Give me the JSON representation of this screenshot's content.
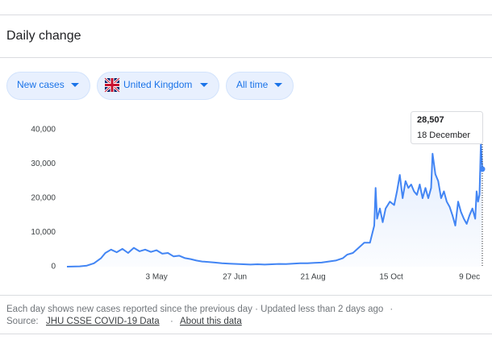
{
  "header": {
    "title": "Daily change"
  },
  "filters": [
    "New cases",
    "United Kingdom",
    "All time"
  ],
  "chart_data": {
    "type": "line",
    "color": "#4285f4",
    "grid": false,
    "x": [
      61,
      70,
      75,
      80,
      85,
      88,
      92,
      96,
      100,
      104,
      108,
      112,
      116,
      120,
      124,
      128,
      132,
      136,
      140,
      144,
      148,
      152,
      156,
      160,
      165,
      170,
      175,
      180,
      185,
      190,
      195,
      200,
      205,
      210,
      215,
      220,
      225,
      230,
      235,
      240,
      245,
      250,
      255,
      258,
      262,
      266,
      270,
      274,
      277,
      278,
      279,
      281,
      283,
      285,
      288,
      291,
      293,
      295,
      297,
      299,
      301,
      303,
      305,
      307,
      309,
      311,
      313,
      315,
      317,
      318,
      320,
      322,
      324,
      326,
      328,
      330,
      332,
      334,
      336,
      338,
      340,
      342,
      344,
      346,
      348,
      349,
      350,
      351,
      352,
      353
    ],
    "values": [
      0,
      100,
      300,
      1000,
      2500,
      4000,
      5000,
      4200,
      5200,
      4000,
      5500,
      4500,
      5000,
      4300,
      4800,
      3800,
      4000,
      3000,
      3200,
      2500,
      2200,
      1800,
      1500,
      1400,
      1200,
      1000,
      900,
      800,
      700,
      600,
      700,
      600,
      700,
      800,
      750,
      900,
      1000,
      1000,
      1100,
      1200,
      1500,
      1800,
      2500,
      3500,
      4000,
      5500,
      7000,
      7000,
      12000,
      23000,
      14000,
      17000,
      13000,
      17000,
      19000,
      18000,
      22000,
      26800,
      20000,
      25000,
      23000,
      24000,
      22000,
      21000,
      24000,
      20000,
      23000,
      20000,
      23000,
      33000,
      27000,
      25000,
      20000,
      22000,
      19000,
      17500,
      15000,
      12000,
      19000,
      16000,
      14000,
      12500,
      15000,
      17000,
      14000,
      22000,
      19000,
      21000,
      36000,
      28507
    ],
    "xlim": [
      61,
      353
    ],
    "xticks": [
      {
        "value": 124,
        "label": "3 May"
      },
      {
        "value": 179,
        "label": "27 Jun"
      },
      {
        "value": 234,
        "label": "21 Aug"
      },
      {
        "value": 289,
        "label": "15 Oct"
      },
      {
        "value": 344,
        "label": "9 Dec"
      }
    ],
    "ylim": [
      0,
      40000
    ],
    "yticks": [
      0,
      {
        "value": 10000,
        "label": "10,000"
      },
      {
        "value": 20000,
        "label": "20,000"
      },
      {
        "value": 30000,
        "label": "30,000"
      },
      {
        "value": 40000,
        "label": "40,000"
      }
    ]
  },
  "tooltip": {
    "value": "28,507",
    "date": "18 December"
  },
  "footer": {
    "note": "Each day shows new cases reported since the previous day · Updated less than 2 days ago",
    "separator": "·",
    "source_label": "Source:",
    "source_link": "JHU CSSE COVID-19 Data",
    "about_link": "About this data"
  }
}
